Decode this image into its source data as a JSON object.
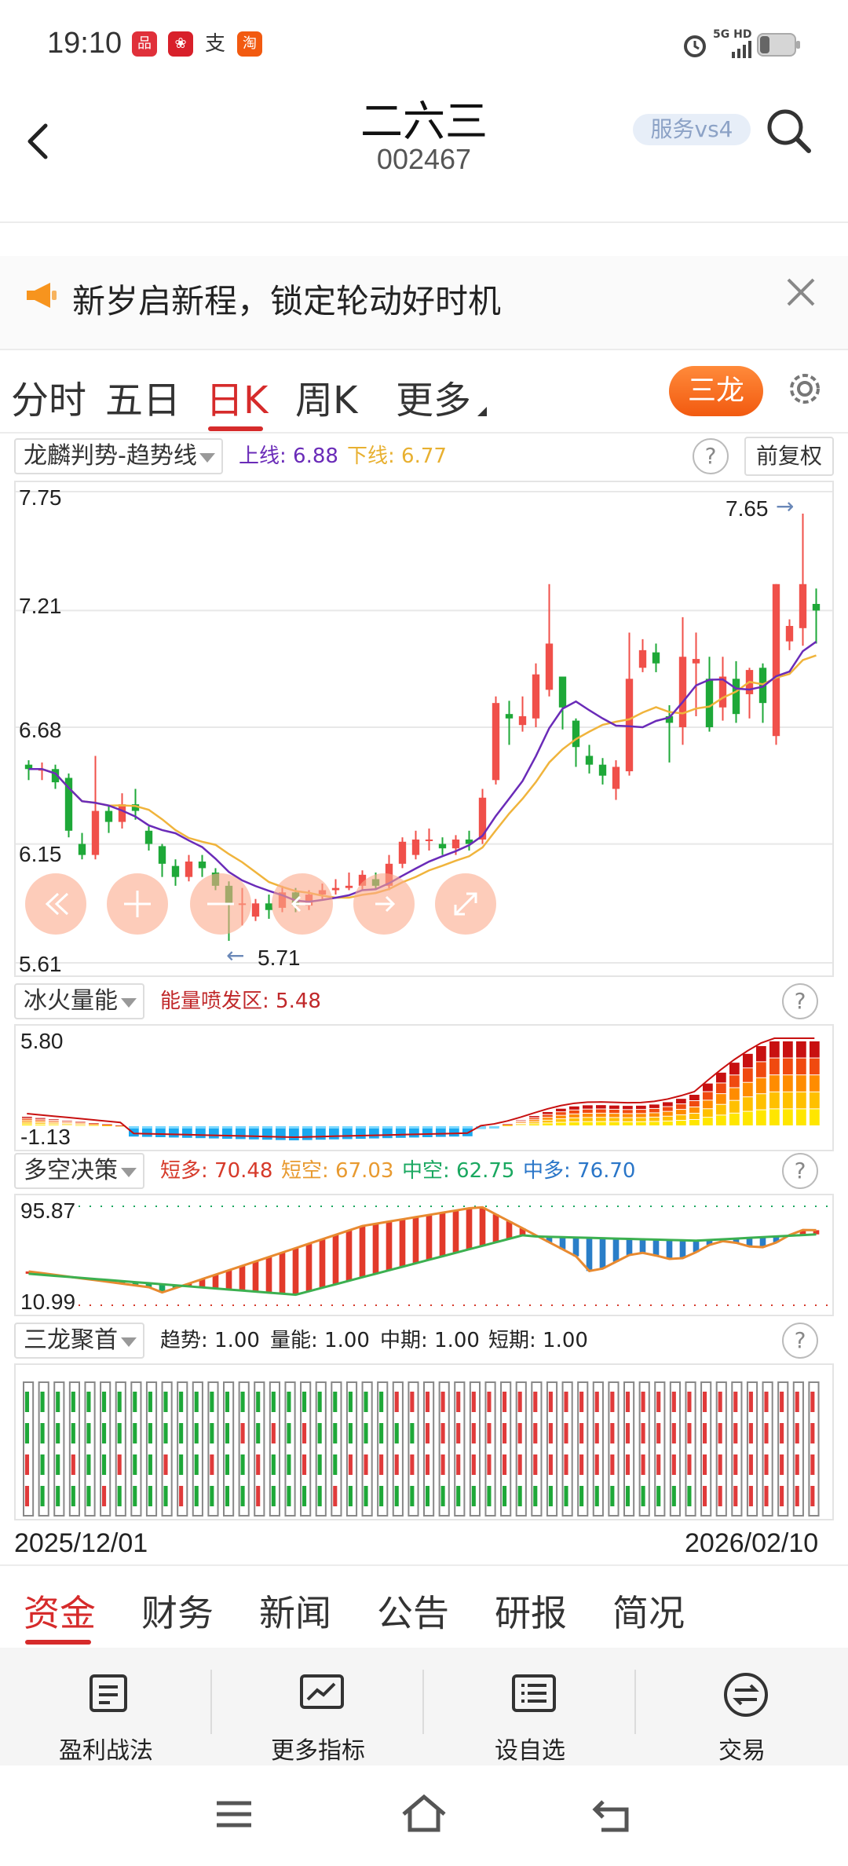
{
  "status_bar": {
    "time": "19:10",
    "network": "5G HD"
  },
  "header": {
    "title": "二六三",
    "code": "002467",
    "service": "服务vs4"
  },
  "banner": {
    "text": "新岁启新程，锁定轮动好时机"
  },
  "period_tabs": [
    {
      "label": "分时",
      "active": false
    },
    {
      "label": "五日",
      "active": false
    },
    {
      "label": "日K",
      "active": true
    },
    {
      "label": "周K",
      "active": false
    },
    {
      "label": "更多",
      "active": false
    }
  ],
  "sanlong_button": "三龙",
  "main_indicator": {
    "selector": "龙麟判势-趋势线",
    "upper_label": "上线: 6.88",
    "lower_label": "下线: 6.77",
    "fuquan": "前复权",
    "y_ticks": [
      "7.75",
      "7.21",
      "6.68",
      "6.15",
      "5.61"
    ],
    "high_mark": "7.65",
    "low_mark": "5.71"
  },
  "energy_indicator": {
    "selector": "冰火量能",
    "label": "能量喷发区: 5.48",
    "y_max": "5.80",
    "y_min": "-1.13"
  },
  "bullbear_indicator": {
    "selector": "多空决策",
    "short_bull": "短多: 70.48",
    "short_bear": "短空: 67.03",
    "mid_bear": "中空: 62.75",
    "mid_bull": "中多: 76.70",
    "y_max": "95.87",
    "y_min": "10.99"
  },
  "sanlong_indicator": {
    "selector": "三龙聚首",
    "trend": "趋势: 1.00",
    "volume": "量能: 1.00",
    "mid": "中期: 1.00",
    "short": "短期: 1.00"
  },
  "date_range": {
    "start": "2025/12/01",
    "end": "2026/02/10"
  },
  "bottom_tabs": [
    {
      "label": "资金",
      "active": true
    },
    {
      "label": "财务",
      "active": false
    },
    {
      "label": "新闻",
      "active": false
    },
    {
      "label": "公告",
      "active": false
    },
    {
      "label": "研报",
      "active": false
    },
    {
      "label": "简况",
      "active": false
    }
  ],
  "toolbar": [
    {
      "label": "盈利战法",
      "icon": "document-icon"
    },
    {
      "label": "更多指标",
      "icon": "chart-icon"
    },
    {
      "label": "设自选",
      "icon": "list-icon"
    },
    {
      "label": "交易",
      "icon": "exchange-icon"
    }
  ],
  "colors": {
    "up": "#f0504a",
    "down": "#1ea838",
    "accent": "#d62b2b",
    "ma_purple": "#6a2bb8",
    "ma_orange": "#f0b43c"
  },
  "chart_data": {
    "type": "candlestick",
    "x_range": [
      "2025/12/01",
      "2026/02/10"
    ],
    "ylim": [
      5.61,
      7.75
    ],
    "candles": [
      [
        6.51,
        6.49,
        6.53,
        6.44
      ],
      [
        6.49,
        6.49,
        6.52,
        6.44
      ],
      [
        6.49,
        6.43,
        6.51,
        6.4
      ],
      [
        6.45,
        6.21,
        6.47,
        6.18
      ],
      [
        6.15,
        6.1,
        6.2,
        6.08
      ],
      [
        6.1,
        6.3,
        6.55,
        6.08
      ],
      [
        6.3,
        6.25,
        6.32,
        6.2
      ],
      [
        6.25,
        6.33,
        6.38,
        6.22
      ],
      [
        6.33,
        6.3,
        6.4,
        6.26
      ],
      [
        6.21,
        6.15,
        6.23,
        6.12
      ],
      [
        6.14,
        6.06,
        6.15,
        6.0
      ],
      [
        6.05,
        6.0,
        6.08,
        5.96
      ],
      [
        6.0,
        6.07,
        6.1,
        5.98
      ],
      [
        6.07,
        6.04,
        6.1,
        6.0
      ],
      [
        6.02,
        5.96,
        6.04,
        5.94
      ],
      [
        5.96,
        5.88,
        5.98,
        5.71
      ],
      [
        5.88,
        5.88,
        5.95,
        5.78
      ],
      [
        5.82,
        5.88,
        5.9,
        5.8
      ],
      [
        5.88,
        5.85,
        5.92,
        5.81
      ],
      [
        5.86,
        5.93,
        5.96,
        5.84
      ],
      [
        5.93,
        5.87,
        5.95,
        5.84
      ],
      [
        5.87,
        5.92,
        5.94,
        5.85
      ],
      [
        5.92,
        5.94,
        5.97,
        5.9
      ],
      [
        5.94,
        5.95,
        5.99,
        5.92
      ],
      [
        5.95,
        5.96,
        6.02,
        5.94
      ],
      [
        5.96,
        6.01,
        6.03,
        5.94
      ],
      [
        5.99,
        5.96,
        6.02,
        5.94
      ],
      [
        5.96,
        6.06,
        6.1,
        5.94
      ],
      [
        6.06,
        6.16,
        6.18,
        6.04
      ],
      [
        6.1,
        6.17,
        6.21,
        6.08
      ],
      [
        6.17,
        6.17,
        6.22,
        6.12
      ],
      [
        6.15,
        6.13,
        6.18,
        6.1
      ],
      [
        6.13,
        6.17,
        6.19,
        6.1
      ],
      [
        6.17,
        6.15,
        6.21,
        6.12
      ],
      [
        6.17,
        6.36,
        6.4,
        6.15
      ],
      [
        6.44,
        6.79,
        6.82,
        6.42
      ],
      [
        6.74,
        6.72,
        6.8,
        6.6
      ],
      [
        6.69,
        6.73,
        6.82,
        6.66
      ],
      [
        6.72,
        6.92,
        6.97,
        6.68
      ],
      [
        6.85,
        7.06,
        7.33,
        6.82
      ],
      [
        6.91,
        6.77,
        6.9,
        6.67
      ],
      [
        6.71,
        6.59,
        6.72,
        6.5
      ],
      [
        6.55,
        6.51,
        6.6,
        6.47
      ],
      [
        6.51,
        6.46,
        6.54,
        6.42
      ],
      [
        6.4,
        6.5,
        6.53,
        6.35
      ],
      [
        6.48,
        6.9,
        7.11,
        6.46
      ],
      [
        6.95,
        7.03,
        7.08,
        6.93
      ],
      [
        7.02,
        6.97,
        7.06,
        6.93
      ],
      [
        6.73,
        6.7,
        6.78,
        6.52
      ],
      [
        6.68,
        7.0,
        7.18,
        6.6
      ],
      [
        6.97,
        6.99,
        7.11,
        6.73
      ],
      [
        6.9,
        6.68,
        7.0,
        6.66
      ],
      [
        6.77,
        6.91,
        7.0,
        6.71
      ],
      [
        6.9,
        6.74,
        6.98,
        6.7
      ],
      [
        6.83,
        6.94,
        6.95,
        6.72
      ],
      [
        6.95,
        6.79,
        6.97,
        6.7
      ],
      [
        6.64,
        7.33,
        7.33,
        6.6
      ],
      [
        7.07,
        7.14,
        7.17,
        7.03
      ],
      [
        7.13,
        7.33,
        7.65,
        7.05
      ],
      [
        7.24,
        7.21,
        7.31,
        7.06
      ]
    ]
  }
}
